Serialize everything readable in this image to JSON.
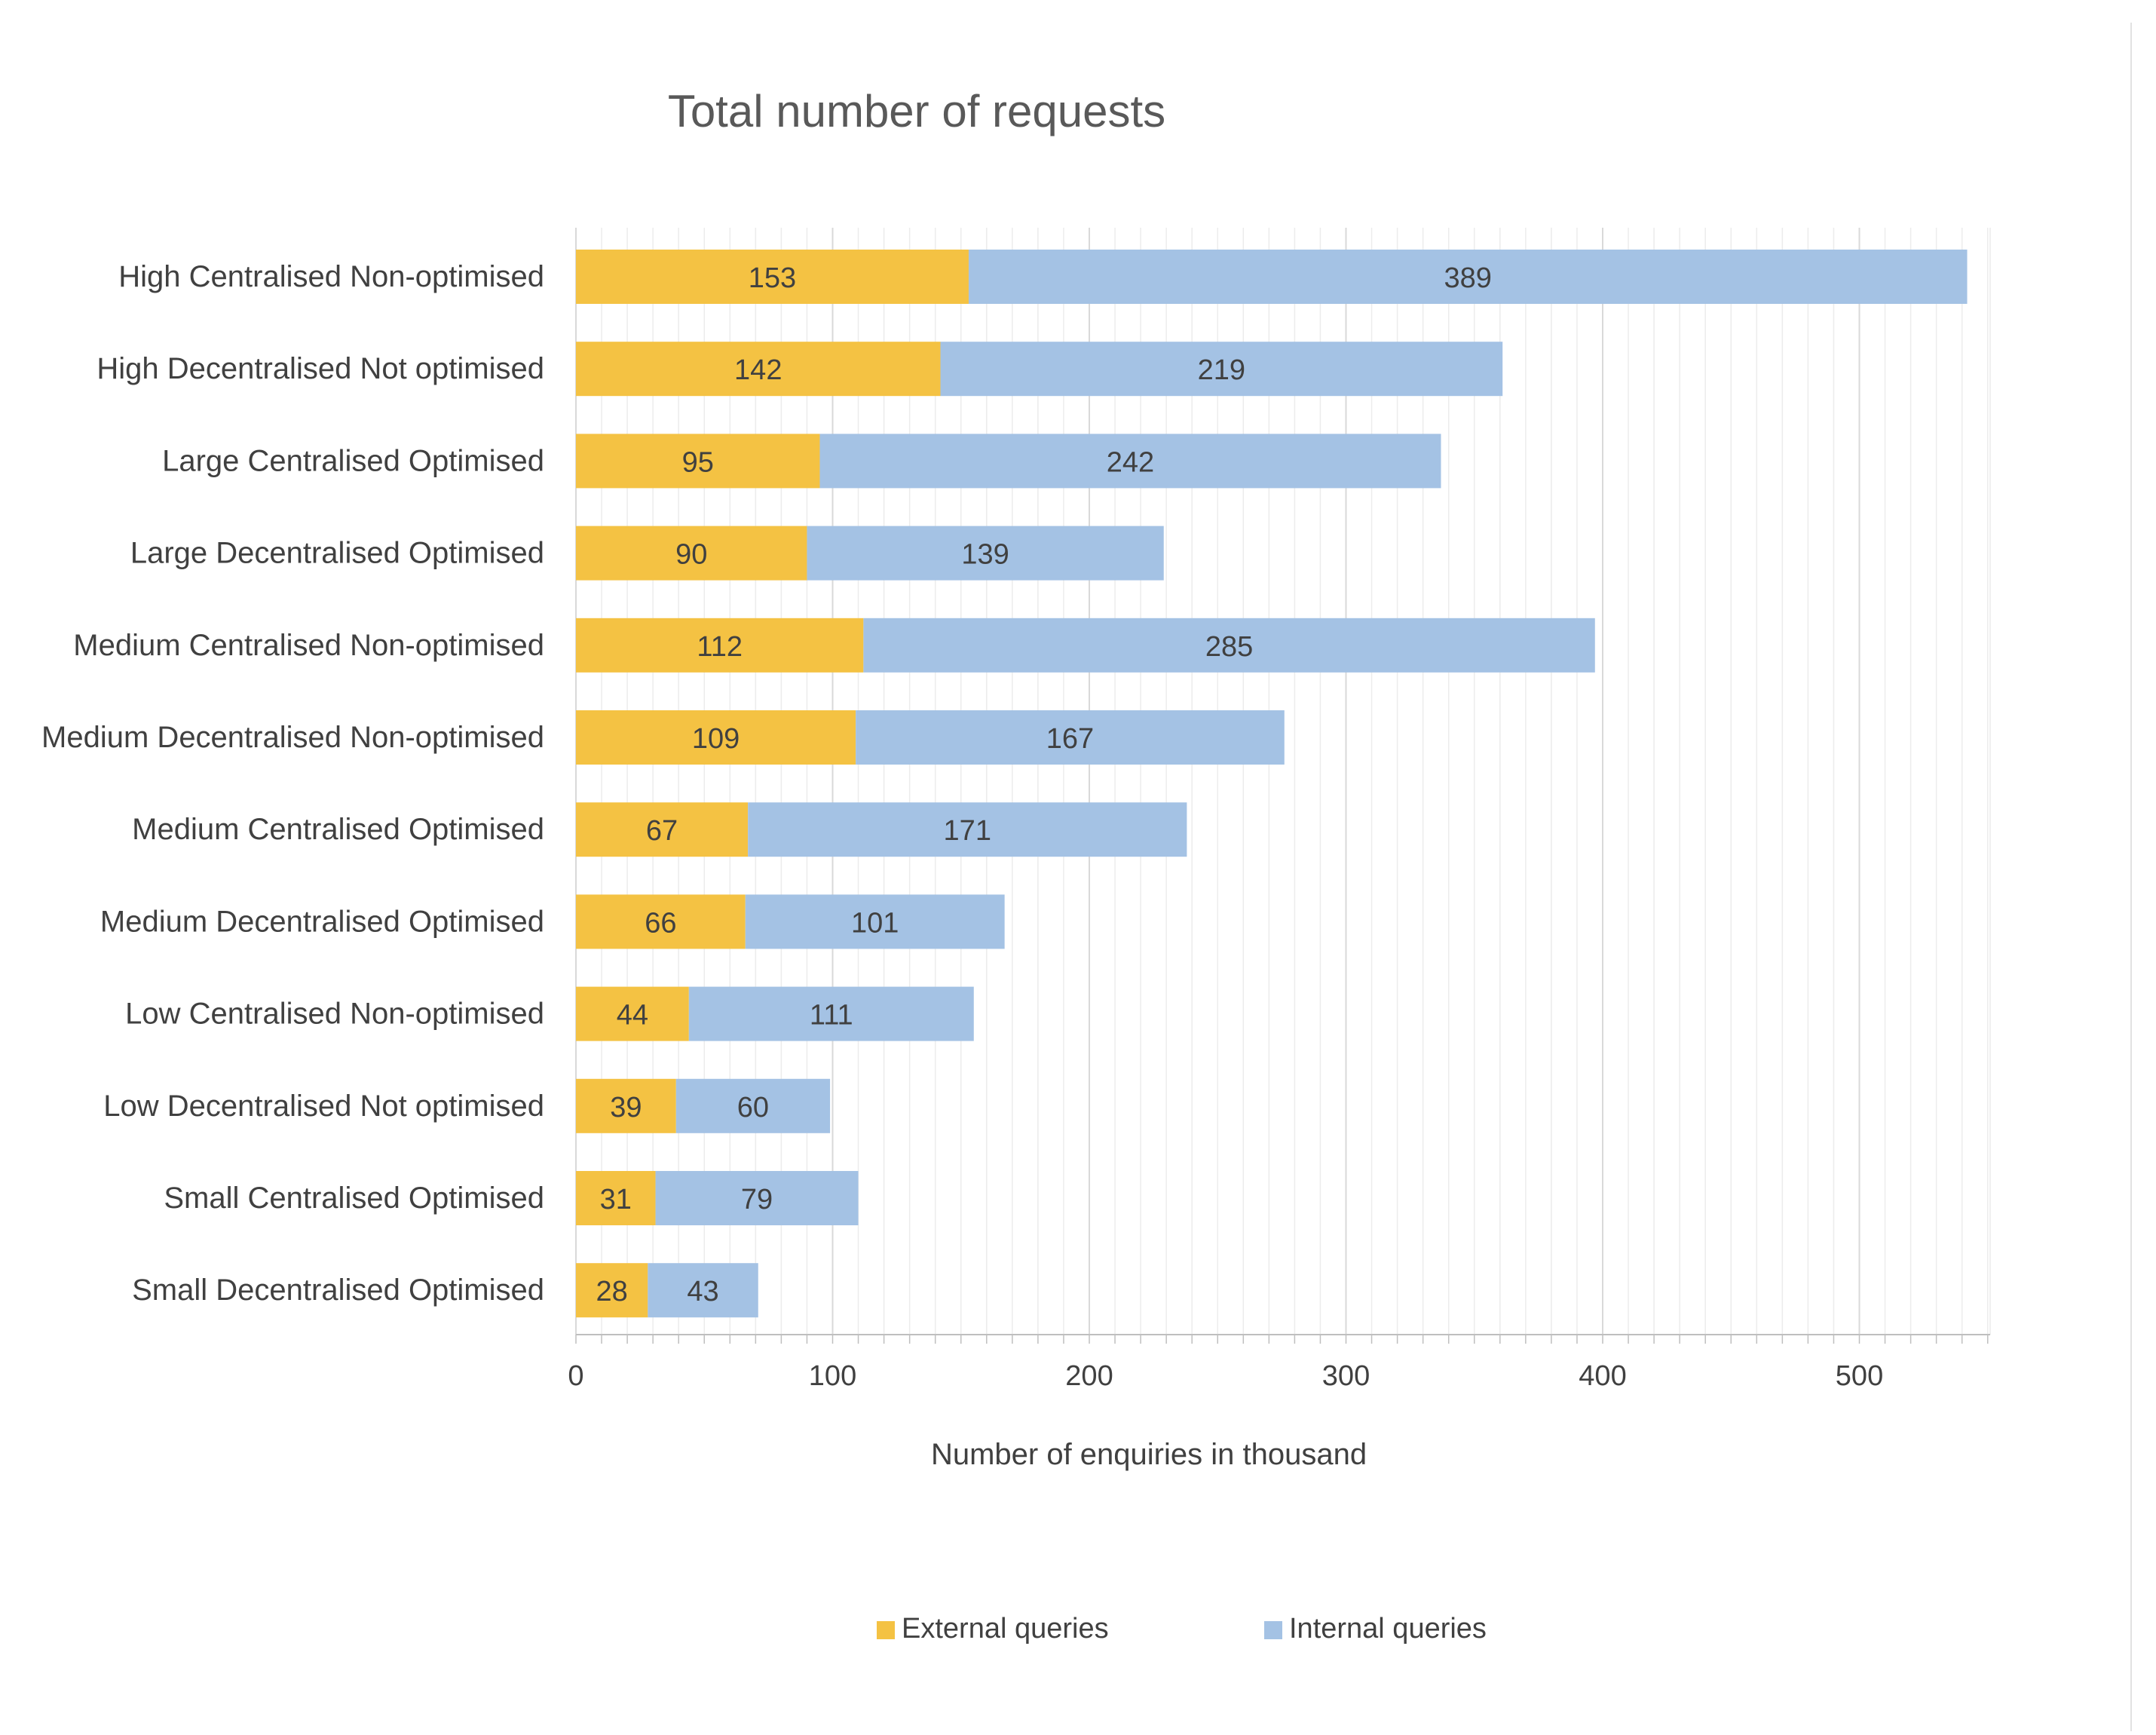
{
  "colors": {
    "external": "#F4C243",
    "internal": "#A4C2E4",
    "major_grid": "#d9d9d9",
    "minor_grid": "#ececec",
    "axis": "#bfbfbf",
    "text": "#404040",
    "title": "#595959"
  },
  "chart_data": {
    "type": "bar",
    "orientation": "horizontal",
    "stacked": true,
    "title": "Total number of requests",
    "xlabel": "Number of enquiries in thousand",
    "ylabel": "",
    "xlim": [
      0,
      550
    ],
    "x_ticks": [
      0,
      100,
      200,
      300,
      400,
      500
    ],
    "x_tick_labels": [
      "0",
      "100",
      "200",
      "300",
      "400",
      "500"
    ],
    "minor_tick_step": 10,
    "grid": true,
    "legend_position": "bottom",
    "categories": [
      "High Centralised Non-optimised",
      "High Decentralised Not optimised",
      "Large Centralised Optimised",
      "Large Decentralised Optimised",
      "Medium Centralised Non-optimised",
      "Medium Decentralised Non-optimised",
      "Medium Centralised Optimised",
      "Medium Decentralised Optimised",
      "Low Centralised Non-optimised",
      "Low Decentralised Not optimised",
      "Small Centralised Optimised",
      "Small Decentralised Optimised"
    ],
    "series": [
      {
        "name": "External queries",
        "values": [
          153,
          142,
          95,
          90,
          112,
          109,
          67,
          66,
          44,
          39,
          31,
          28
        ]
      },
      {
        "name": "Internal queries",
        "values": [
          389,
          219,
          242,
          139,
          285,
          167,
          171,
          101,
          111,
          60,
          79,
          43
        ]
      }
    ]
  }
}
